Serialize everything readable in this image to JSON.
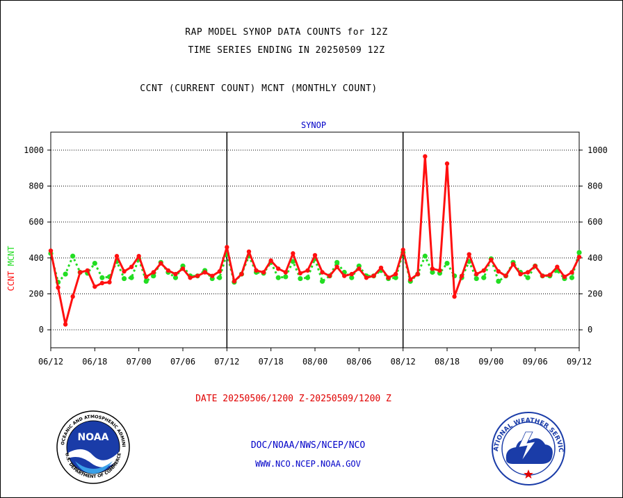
{
  "titles": {
    "line1": "RAP MODEL SYNOP DATA COUNTS for 12Z",
    "line2": "TIME SERIES ENDING IN 20250509 12Z",
    "line3": "CCNT (CURRENT COUNT) MCNT (MONTHLY COUNT)"
  },
  "footer": {
    "date_range": "DATE 20250506/1200 Z-20250509/1200 Z",
    "agency": "DOC/NOAA/NWS/NCEP/NCO",
    "website": "WWW.NCO.NCEP.NOAA.GOV"
  },
  "logos": {
    "left_text": "NOAA",
    "left_ring": "NATIONAL OCEANIC AND ATMOSPHERIC ADMINISTRATION",
    "left_ring_bottom": "U.S. DEPARTMENT OF COMMERCE",
    "right_ring": "NATIONAL WEATHER SERVICE"
  },
  "chart_data": {
    "type": "line",
    "title": "SYNOP",
    "ylabel_ccnt": "CCNT",
    "ylabel_mcnt": "MCNT",
    "ylim": [
      -100,
      1100
    ],
    "yticks": [
      0,
      200,
      400,
      600,
      800,
      1000
    ],
    "xticks": [
      "06/12",
      "06/18",
      "07/00",
      "07/06",
      "07/12",
      "07/18",
      "08/00",
      "08/06",
      "08/12",
      "08/18",
      "09/00",
      "09/06",
      "09/12"
    ],
    "x_start_hours": 0,
    "x_end_hours": 72,
    "day_dividers_hours": [
      24,
      48
    ],
    "grid": true,
    "colors": {
      "ccnt": "#ff1010",
      "mcnt": "#22dd22",
      "axis": "#000000",
      "title": "#0000c8"
    },
    "series": [
      {
        "name": "CCNT",
        "points": [
          [
            0,
            440
          ],
          [
            1,
            235
          ],
          [
            2,
            30
          ],
          [
            3,
            185
          ],
          [
            4,
            320
          ],
          [
            5,
            330
          ],
          [
            6,
            240
          ],
          [
            7,
            260
          ],
          [
            8,
            265
          ],
          [
            9,
            410
          ],
          [
            10,
            325
          ],
          [
            11,
            350
          ],
          [
            12,
            410
          ],
          [
            13,
            295
          ],
          [
            14,
            320
          ],
          [
            15,
            370
          ],
          [
            16,
            330
          ],
          [
            17,
            310
          ],
          [
            18,
            340
          ],
          [
            19,
            290
          ],
          [
            20,
            300
          ],
          [
            21,
            320
          ],
          [
            22,
            300
          ],
          [
            23,
            325
          ],
          [
            24,
            460
          ],
          [
            25,
            270
          ],
          [
            26,
            310
          ],
          [
            27,
            435
          ],
          [
            28,
            330
          ],
          [
            29,
            320
          ],
          [
            30,
            385
          ],
          [
            31,
            340
          ],
          [
            32,
            320
          ],
          [
            33,
            425
          ],
          [
            34,
            315
          ],
          [
            35,
            330
          ],
          [
            36,
            415
          ],
          [
            37,
            320
          ],
          [
            38,
            300
          ],
          [
            39,
            350
          ],
          [
            40,
            300
          ],
          [
            41,
            310
          ],
          [
            42,
            340
          ],
          [
            43,
            290
          ],
          [
            44,
            300
          ],
          [
            45,
            345
          ],
          [
            46,
            290
          ],
          [
            47,
            310
          ],
          [
            48,
            445
          ],
          [
            49,
            280
          ],
          [
            50,
            310
          ],
          [
            51,
            965
          ],
          [
            52,
            340
          ],
          [
            53,
            330
          ],
          [
            54,
            925
          ],
          [
            55,
            185
          ],
          [
            56,
            300
          ],
          [
            57,
            420
          ],
          [
            58,
            310
          ],
          [
            59,
            330
          ],
          [
            60,
            390
          ],
          [
            61,
            325
          ],
          [
            62,
            300
          ],
          [
            63,
            365
          ],
          [
            64,
            310
          ],
          [
            65,
            320
          ],
          [
            66,
            355
          ],
          [
            67,
            300
          ],
          [
            68,
            305
          ],
          [
            69,
            350
          ],
          [
            70,
            295
          ],
          [
            71,
            320
          ],
          [
            72,
            405
          ]
        ]
      },
      {
        "name": "MCNT",
        "points": [
          [
            0,
            425
          ],
          [
            1,
            265
          ],
          [
            2,
            310
          ],
          [
            3,
            410
          ],
          [
            4,
            320
          ],
          [
            5,
            315
          ],
          [
            6,
            370
          ],
          [
            7,
            290
          ],
          [
            8,
            295
          ],
          [
            9,
            380
          ],
          [
            10,
            285
          ],
          [
            11,
            290
          ],
          [
            12,
            395
          ],
          [
            13,
            270
          ],
          [
            14,
            300
          ],
          [
            15,
            375
          ],
          [
            16,
            320
          ],
          [
            17,
            290
          ],
          [
            18,
            355
          ],
          [
            19,
            300
          ],
          [
            20,
            300
          ],
          [
            21,
            330
          ],
          [
            22,
            285
          ],
          [
            23,
            290
          ],
          [
            24,
            425
          ],
          [
            25,
            265
          ],
          [
            26,
            310
          ],
          [
            27,
            410
          ],
          [
            28,
            320
          ],
          [
            29,
            315
          ],
          [
            30,
            375
          ],
          [
            31,
            290
          ],
          [
            32,
            295
          ],
          [
            33,
            380
          ],
          [
            34,
            285
          ],
          [
            35,
            290
          ],
          [
            36,
            395
          ],
          [
            37,
            270
          ],
          [
            38,
            300
          ],
          [
            39,
            375
          ],
          [
            40,
            320
          ],
          [
            41,
            290
          ],
          [
            42,
            355
          ],
          [
            43,
            300
          ],
          [
            44,
            300
          ],
          [
            45,
            330
          ],
          [
            46,
            285
          ],
          [
            47,
            290
          ],
          [
            48,
            430
          ],
          [
            49,
            270
          ],
          [
            50,
            310
          ],
          [
            51,
            410
          ],
          [
            52,
            320
          ],
          [
            53,
            315
          ],
          [
            54,
            370
          ],
          [
            55,
            300
          ],
          [
            56,
            290
          ],
          [
            57,
            380
          ],
          [
            58,
            285
          ],
          [
            59,
            290
          ],
          [
            60,
            395
          ],
          [
            61,
            270
          ],
          [
            62,
            300
          ],
          [
            63,
            375
          ],
          [
            64,
            320
          ],
          [
            65,
            290
          ],
          [
            66,
            355
          ],
          [
            67,
            300
          ],
          [
            68,
            300
          ],
          [
            69,
            330
          ],
          [
            70,
            285
          ],
          [
            71,
            290
          ],
          [
            72,
            430
          ]
        ]
      }
    ]
  }
}
